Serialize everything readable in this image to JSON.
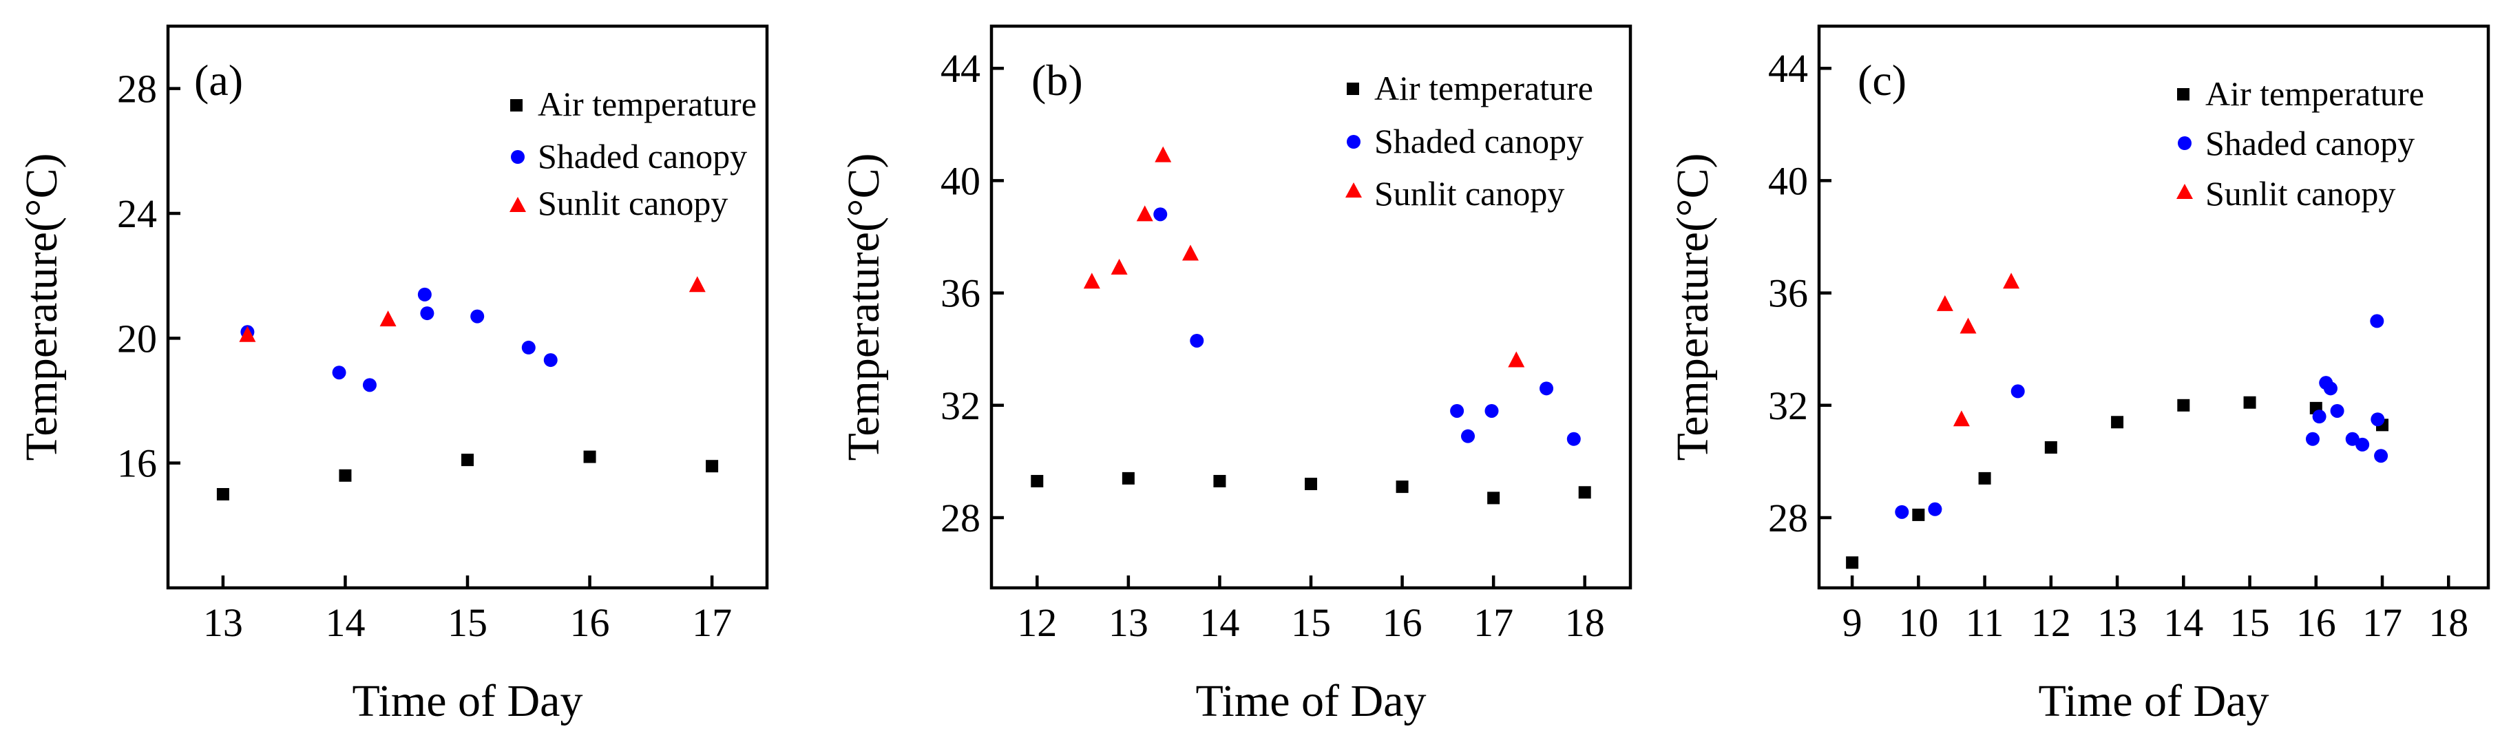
{
  "chart_data": [
    {
      "panel_label": "(a)",
      "type": "scatter",
      "xlabel": "Time of Day",
      "ylabel": "Temperature(°C)",
      "xlim": [
        12.55,
        17.45
      ],
      "ylim": [
        12.0,
        30.0
      ],
      "xticks": [
        13,
        14,
        15,
        16,
        17
      ],
      "yticks": [
        16,
        20,
        24,
        28
      ],
      "legend": {
        "position": "top-right",
        "entries": [
          "Air temperature",
          "Shaded canopy",
          "Sunlit canopy"
        ]
      },
      "series": [
        {
          "name": "Air temperature",
          "marker": "square",
          "color": "#000000",
          "points": [
            [
              13.0,
              15.0
            ],
            [
              14.0,
              15.6
            ],
            [
              15.0,
              16.1
            ],
            [
              16.0,
              16.2
            ],
            [
              17.0,
              15.9
            ]
          ]
        },
        {
          "name": "Shaded canopy",
          "marker": "circle",
          "color": "#0000ff",
          "points": [
            [
              13.2,
              20.2
            ],
            [
              13.95,
              18.9
            ],
            [
              14.2,
              18.5
            ],
            [
              14.65,
              21.4
            ],
            [
              14.67,
              20.8
            ],
            [
              15.08,
              20.7
            ],
            [
              15.5,
              19.7
            ],
            [
              15.68,
              19.3
            ]
          ]
        },
        {
          "name": "Sunlit canopy",
          "marker": "triangle",
          "color": "#ff0000",
          "points": [
            [
              13.2,
              20.1
            ],
            [
              14.35,
              20.6
            ],
            [
              16.88,
              21.7
            ]
          ]
        }
      ]
    },
    {
      "panel_label": "(b)",
      "type": "scatter",
      "xlabel": "Time of Day",
      "ylabel": "Temperature(°C)",
      "xlim": [
        11.5,
        18.5
      ],
      "ylim": [
        25.5,
        45.5
      ],
      "xticks": [
        12,
        13,
        14,
        15,
        16,
        17,
        18
      ],
      "yticks": [
        28,
        32,
        36,
        40,
        44
      ],
      "legend": {
        "position": "top-right",
        "entries": [
          "Air temperature",
          "Shaded canopy",
          "Sunlit canopy"
        ]
      },
      "series": [
        {
          "name": "Air temperature",
          "marker": "square",
          "color": "#000000",
          "points": [
            [
              12.0,
              29.3
            ],
            [
              13.0,
              29.4
            ],
            [
              14.0,
              29.3
            ],
            [
              15.0,
              29.2
            ],
            [
              16.0,
              29.1
            ],
            [
              17.0,
              28.7
            ],
            [
              18.0,
              28.9
            ]
          ]
        },
        {
          "name": "Shaded canopy",
          "marker": "circle",
          "color": "#0000ff",
          "points": [
            [
              13.35,
              38.8
            ],
            [
              13.75,
              34.3
            ],
            [
              16.6,
              31.8
            ],
            [
              16.72,
              30.9
            ],
            [
              16.98,
              31.8
            ],
            [
              17.58,
              32.6
            ],
            [
              17.88,
              30.8
            ]
          ]
        },
        {
          "name": "Sunlit canopy",
          "marker": "triangle",
          "color": "#ff0000",
          "points": [
            [
              12.6,
              36.4
            ],
            [
              12.9,
              36.9
            ],
            [
              13.18,
              38.8
            ],
            [
              13.38,
              40.9
            ],
            [
              13.68,
              37.4
            ],
            [
              17.25,
              33.6
            ]
          ]
        }
      ]
    },
    {
      "panel_label": "(c)",
      "type": "scatter",
      "xlabel": "Time of Day",
      "ylabel": "Temperature(°C)",
      "xlim": [
        8.5,
        18.6
      ],
      "ylim": [
        25.5,
        45.5
      ],
      "xticks": [
        9,
        10,
        11,
        12,
        13,
        14,
        15,
        16,
        17,
        18
      ],
      "yticks": [
        28,
        32,
        36,
        40,
        44
      ],
      "legend": {
        "position": "top-right",
        "entries": [
          "Air temperature",
          "Shaded canopy",
          "Sunlit canopy"
        ]
      },
      "series": [
        {
          "name": "Air temperature",
          "marker": "square",
          "color": "#000000",
          "points": [
            [
              9.0,
              26.4
            ],
            [
              10.0,
              28.1
            ],
            [
              11.0,
              29.4
            ],
            [
              12.0,
              30.5
            ],
            [
              13.0,
              31.4
            ],
            [
              14.0,
              32.0
            ],
            [
              15.0,
              32.1
            ],
            [
              16.0,
              31.9
            ],
            [
              17.0,
              31.3
            ]
          ]
        },
        {
          "name": "Shaded canopy",
          "marker": "circle",
          "color": "#0000ff",
          "points": [
            [
              9.75,
              28.2
            ],
            [
              10.25,
              28.3
            ],
            [
              11.5,
              32.5
            ],
            [
              15.95,
              30.8
            ],
            [
              16.05,
              31.6
            ],
            [
              16.15,
              32.8
            ],
            [
              16.22,
              32.6
            ],
            [
              16.32,
              31.8
            ],
            [
              16.55,
              30.8
            ],
            [
              16.7,
              30.6
            ],
            [
              16.92,
              35.0
            ],
            [
              16.93,
              31.5
            ],
            [
              16.98,
              30.2
            ]
          ]
        },
        {
          "name": "Sunlit canopy",
          "marker": "triangle",
          "color": "#ff0000",
          "points": [
            [
              10.4,
              35.6
            ],
            [
              10.65,
              31.5
            ],
            [
              10.75,
              34.8
            ],
            [
              11.4,
              36.4
            ]
          ]
        }
      ]
    }
  ]
}
